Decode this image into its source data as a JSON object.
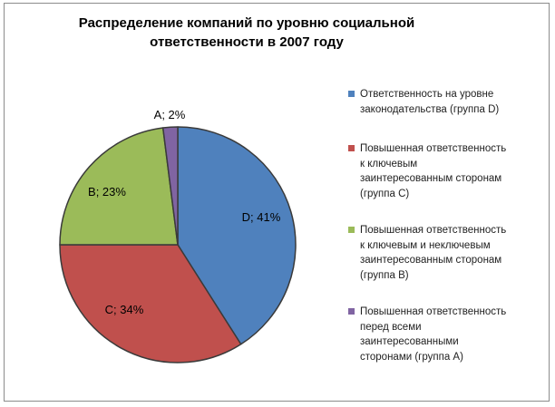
{
  "chart_data": {
    "type": "pie",
    "title": [
      "Распределение компаний по уровню социальной",
      "ответственности в 2007 году"
    ],
    "slices": [
      {
        "label": "D; 41%",
        "value": 41,
        "color": "#4f81bd"
      },
      {
        "label": "C; 34%",
        "value": 34,
        "color": "#c0504d"
      },
      {
        "label": "B; 23%",
        "value": 23,
        "color": "#9bbb59"
      },
      {
        "label": "A; 2%",
        "value": 2,
        "color": "#8064a2"
      }
    ],
    "legend": [
      {
        "lines": [
          "Ответственность на уровне",
          "законодательства (группа D)"
        ],
        "color": "#4f81bd"
      },
      {
        "lines": [
          "Повышенная ответственность",
          "к ключевым",
          "заинтересованным сторонам",
          "(группа С)"
        ],
        "color": "#c0504d"
      },
      {
        "lines": [
          "Повышенная ответственность",
          "к ключевым и неключевым",
          "заинтересованным сторонам",
          "(группа В)"
        ],
        "color": "#9bbb59"
      },
      {
        "lines": [
          "Повышенная ответственность",
          "перед всеми",
          "заинтересованными",
          "сторонами (группа А)"
        ],
        "color": "#8064a2"
      }
    ],
    "legend_position": "right"
  }
}
